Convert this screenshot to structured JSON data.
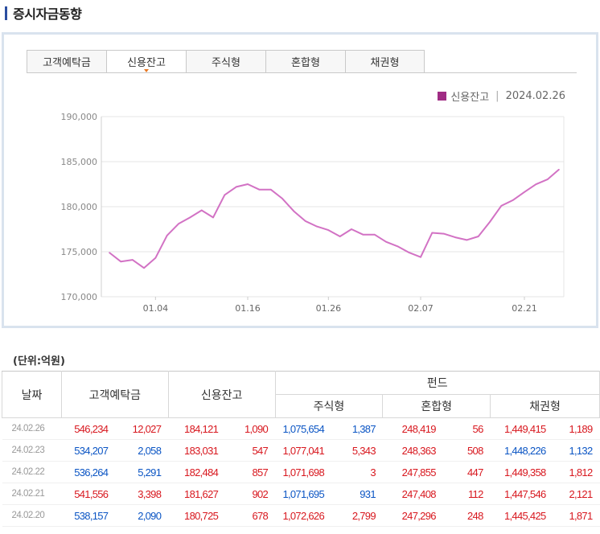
{
  "page_title": "증시자금동향",
  "tabs": [
    {
      "label": "고객예탁금",
      "active": false
    },
    {
      "label": "신용잔고",
      "active": true
    },
    {
      "label": "주식형",
      "active": false
    },
    {
      "label": "혼합형",
      "active": false
    },
    {
      "label": "채권형",
      "active": false
    }
  ],
  "legend": {
    "series": "신용잔고",
    "date": "2024.02.26",
    "separator": "|",
    "color": "#a02c84"
  },
  "chart_data": {
    "type": "line",
    "ylim": [
      170000,
      190000
    ],
    "yticks": [
      "190,000",
      "185,000",
      "180,000",
      "175,000",
      "170,000"
    ],
    "ytick_values": [
      190000,
      185000,
      180000,
      175000,
      170000
    ],
    "xtick_labels": [
      "01.04",
      "01.16",
      "01.26",
      "02.07",
      "02.21"
    ],
    "xtick_indices": [
      4,
      12,
      19,
      27,
      36
    ],
    "line_color": "#d272c4",
    "series": [
      {
        "name": "신용잔고",
        "values": [
          174900,
          173900,
          174100,
          173200,
          174300,
          176800,
          178100,
          178800,
          179600,
          178800,
          181300,
          182200,
          182500,
          181900,
          181900,
          180900,
          179500,
          178400,
          177800,
          177400,
          176700,
          177500,
          176900,
          176900,
          176100,
          175600,
          174900,
          174400,
          177100,
          177000,
          176600,
          176300,
          176700,
          178300,
          180100,
          180725,
          181627,
          182484,
          183031,
          184121
        ]
      }
    ]
  },
  "unit_label": "(단위:억원)",
  "table": {
    "headers": {
      "date": "날짜",
      "deposit": "고객예탁금",
      "credit": "신용잔고",
      "fund": "펀드",
      "stock": "주식형",
      "mixed": "혼합형",
      "bond": "채권형"
    },
    "rows": [
      {
        "date": "24.02.26",
        "deposit": "546,234",
        "deposit_chg": "12,027",
        "credit": "184,121",
        "credit_chg": "1,090",
        "stock": "1,075,654",
        "stock_chg": "1,387",
        "mixed": "248,419",
        "mixed_chg": "56",
        "bond": "1,449,415",
        "bond_chg": "1,189"
      },
      {
        "date": "24.02.23",
        "deposit": "534,207",
        "deposit_chg": "2,058",
        "credit": "183,031",
        "credit_chg": "547",
        "stock": "1,077,041",
        "stock_chg": "5,343",
        "mixed": "248,363",
        "mixed_chg": "508",
        "bond": "1,448,226",
        "bond_chg": "1,132"
      },
      {
        "date": "24.02.22",
        "deposit": "536,264",
        "deposit_chg": "5,291",
        "credit": "182,484",
        "credit_chg": "857",
        "stock": "1,071,698",
        "stock_chg": "3",
        "mixed": "247,855",
        "mixed_chg": "447",
        "bond": "1,449,358",
        "bond_chg": "1,812"
      },
      {
        "date": "24.02.21",
        "deposit": "541,556",
        "deposit_chg": "3,398",
        "credit": "181,627",
        "credit_chg": "902",
        "stock": "1,071,695",
        "stock_chg": "931",
        "mixed": "247,408",
        "mixed_chg": "112",
        "bond": "1,447,546",
        "bond_chg": "2,121"
      },
      {
        "date": "24.02.20",
        "deposit": "538,157",
        "deposit_chg": "2,090",
        "credit": "180,725",
        "credit_chg": "678",
        "stock": "1,072,626",
        "stock_chg": "2,799",
        "mixed": "247,296",
        "mixed_chg": "248",
        "bond": "1,445,425",
        "bond_chg": "1,871"
      }
    ],
    "row_colors": [
      {
        "deposit": "red",
        "credit": "red",
        "stock": "blue",
        "mixed": "red",
        "bond": "red"
      },
      {
        "deposit": "blue",
        "credit": "red",
        "stock": "red",
        "mixed": "red",
        "bond": "blue"
      },
      {
        "deposit": "blue",
        "credit": "red",
        "stock": "red",
        "mixed": "red",
        "bond": "red"
      },
      {
        "deposit": "red",
        "credit": "red",
        "stock": "blue",
        "mixed": "red",
        "bond": "red"
      },
      {
        "deposit": "blue",
        "credit": "red",
        "stock": "red",
        "mixed": "red",
        "bond": "red"
      }
    ]
  }
}
